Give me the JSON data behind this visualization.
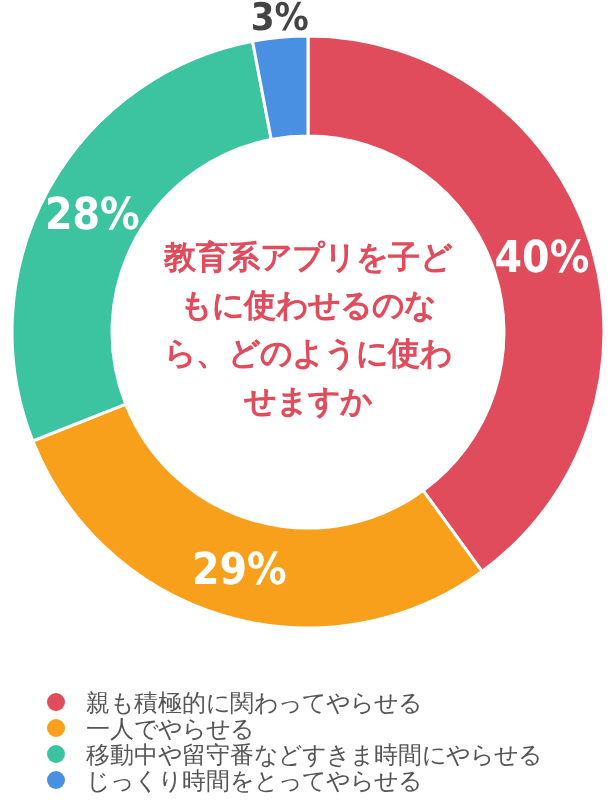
{
  "chart_data": {
    "type": "donut",
    "title": "教育系アプリを子どもに使わせるのなら、どのように使わせますか",
    "categories": [
      "親も積極的に関わってやらせる",
      "一人でやらせる",
      "移動中や留守番などすきま時間にやらせる",
      "じっくり時間をとってやらせる"
    ],
    "values": [
      40,
      29,
      28,
      3
    ],
    "colors": [
      "#e04c5c",
      "#f8a01c",
      "#3cc3a0",
      "#4a90e2"
    ],
    "value_labels": [
      "40%",
      "29%",
      "28%",
      "3%"
    ],
    "legend": "bottom"
  }
}
